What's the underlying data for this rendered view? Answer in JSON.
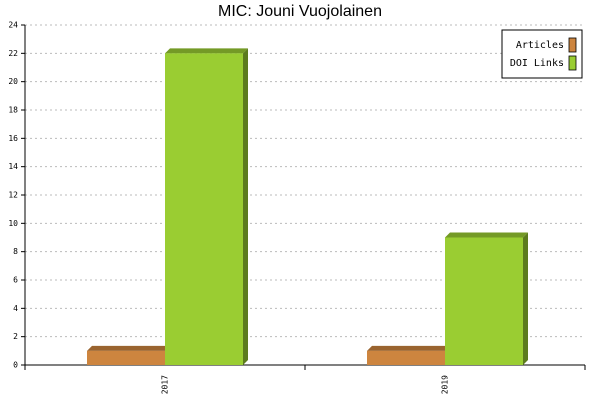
{
  "chart_data": {
    "type": "bar",
    "title": "MIC: Jouni Vuojolainen",
    "categories": [
      "2017",
      "2019"
    ],
    "series": [
      {
        "name": "Articles",
        "color": "#cd853f",
        "values": [
          1,
          1
        ]
      },
      {
        "name": "DOI Links",
        "color": "#9acd32",
        "values": [
          22,
          9
        ]
      }
    ],
    "ylim": [
      0,
      24
    ],
    "yticks": [
      0,
      2,
      4,
      6,
      8,
      10,
      12,
      14,
      16,
      18,
      20,
      22,
      24
    ],
    "grid": true,
    "legend": "top-right"
  }
}
